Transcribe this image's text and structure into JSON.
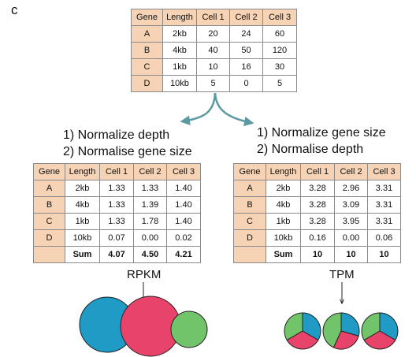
{
  "panel_label": "c",
  "raw_table": {
    "headers": [
      "Gene",
      "Length",
      "Cell 1",
      "Cell 2",
      "Cell 3"
    ],
    "rows": [
      [
        "A",
        "2kb",
        "20",
        "24",
        "60"
      ],
      [
        "B",
        "4kb",
        "40",
        "50",
        "120"
      ],
      [
        "C",
        "1kb",
        "10",
        "16",
        "30"
      ],
      [
        "D",
        "10kb",
        "5",
        "0",
        "5"
      ]
    ]
  },
  "left": {
    "steps": [
      "1) Normalize depth",
      "2) Normalise gene size"
    ],
    "headers": [
      "Gene",
      "Length",
      "Cell 1",
      "Cell 2",
      "Cell 3"
    ],
    "rows": [
      [
        "A",
        "2kb",
        "1.33",
        "1.33",
        "1.40"
      ],
      [
        "B",
        "4kb",
        "1.33",
        "1.39",
        "1.40"
      ],
      [
        "C",
        "1kb",
        "1.33",
        "1.78",
        "1.40"
      ],
      [
        "D",
        "10kb",
        "0.07",
        "0.00",
        "0.02"
      ]
    ],
    "sum_row": [
      "",
      "Sum",
      "4.07",
      "4.50",
      "4.21"
    ],
    "method": "RPKM"
  },
  "right": {
    "steps": [
      "1) Normalize gene size",
      "2) Normalise depth"
    ],
    "headers": [
      "Gene",
      "Length",
      "Cell 1",
      "Cell 2",
      "Cell 3"
    ],
    "rows": [
      [
        "A",
        "2kb",
        "3.28",
        "2.96",
        "3.31"
      ],
      [
        "B",
        "4kb",
        "3.28",
        "3.09",
        "3.31"
      ],
      [
        "C",
        "1kb",
        "3.28",
        "3.95",
        "3.31"
      ],
      [
        "D",
        "10kb",
        "0.16",
        "0.00",
        "0.06"
      ]
    ],
    "sum_row": [
      "",
      "Sum",
      "10",
      "10",
      "10"
    ],
    "method": "TPM"
  },
  "colors": {
    "gene_cell_fill": "#f6d3b5",
    "arrow": "#5b9aa0",
    "blue": "#1f9bc6",
    "pink": "#e8436b",
    "green": "#72c46b"
  }
}
